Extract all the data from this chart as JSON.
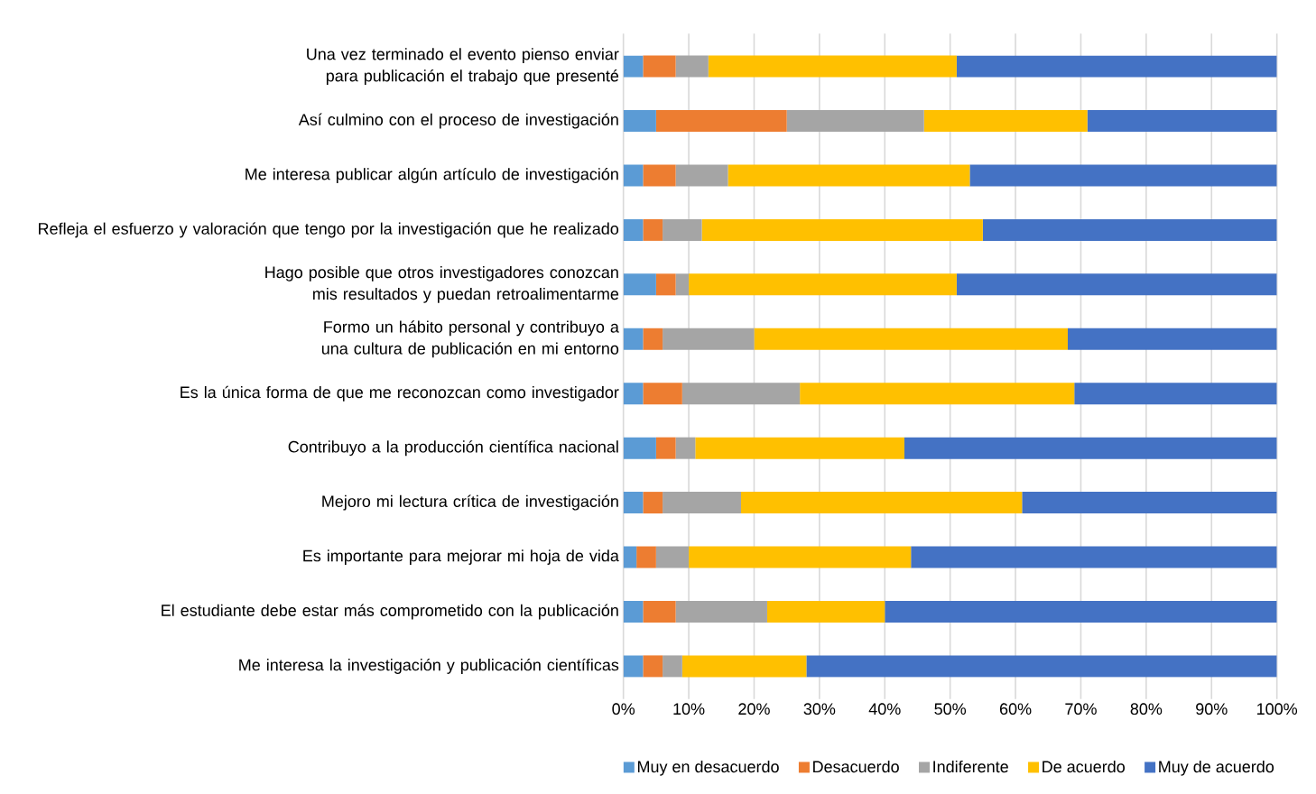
{
  "chart_data": {
    "type": "bar",
    "orientation": "horizontal",
    "stacked": true,
    "categories": [
      "Una vez terminado el evento pienso enviar para publicación el trabajo que presenté",
      "Así culmino con el proceso de investigación",
      "Me interesa publicar algún artículo de investigación",
      "Refleja el esfuerzo y valoración que tengo por la investigación que he realizado",
      "Hago posible que otros investigadores conozcan mis resultados y puedan retroalimentarme",
      "Formo un hábito personal y contribuyo a una cultura de publicación en mi entorno",
      "Es la única forma de que me reconozcan como investigador",
      "Contribuyo a la producción científica nacional",
      "Mejoro mi lectura crítica de investigación",
      "Es importante para mejorar mi hoja de vida",
      "El estudiante debe estar más comprometido con la publicación",
      "Me interesa la investigación y publicación científicas"
    ],
    "series": [
      {
        "name": "Muy en desacuerdo",
        "color": "#5b9bd5",
        "values": [
          3,
          5,
          3,
          3,
          5,
          3,
          3,
          5,
          3,
          2,
          3,
          3
        ]
      },
      {
        "name": "Desacuerdo",
        "color": "#ed7d31",
        "values": [
          5,
          20,
          5,
          3,
          3,
          3,
          6,
          3,
          3,
          3,
          5,
          3
        ]
      },
      {
        "name": "Indiferente",
        "color": "#a5a5a5",
        "values": [
          5,
          21,
          8,
          6,
          2,
          14,
          18,
          3,
          12,
          5,
          14,
          3
        ]
      },
      {
        "name": "De acuerdo",
        "color": "#ffc000",
        "values": [
          38,
          25,
          37,
          43,
          41,
          48,
          42,
          32,
          43,
          34,
          18,
          19
        ]
      },
      {
        "name": "Muy de acuerdo",
        "color": "#4472c4",
        "values": [
          49,
          29,
          47,
          45,
          49,
          32,
          31,
          57,
          39,
          56,
          60,
          72
        ]
      }
    ],
    "xlim": [
      0,
      100
    ],
    "xticks": [
      {
        "value": 0,
        "label": "0%"
      },
      {
        "value": 10,
        "label": "10%"
      },
      {
        "value": 20,
        "label": "20%"
      },
      {
        "value": 30,
        "label": "30%"
      },
      {
        "value": 40,
        "label": "40%"
      },
      {
        "value": 50,
        "label": "50%"
      },
      {
        "value": 60,
        "label": "60%"
      },
      {
        "value": 70,
        "label": "70%"
      },
      {
        "value": 80,
        "label": "80%"
      },
      {
        "value": 90,
        "label": "90%"
      },
      {
        "value": 100,
        "label": "100%"
      }
    ],
    "grid": "x",
    "legend": "bottom"
  }
}
